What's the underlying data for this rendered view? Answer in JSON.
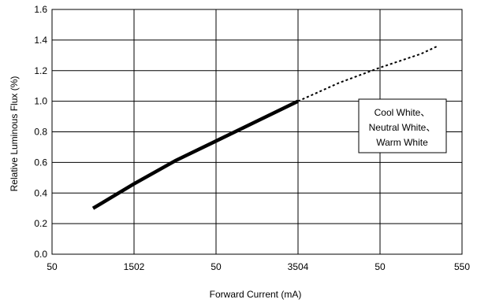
{
  "chart_data": {
    "type": "line",
    "xlabel": "Forward Current (mA)",
    "ylabel": "Relative Luminous Flux (%)",
    "x_tick_labels": [
      "50",
      "1502",
      "50",
      "3504",
      "50",
      "550"
    ],
    "x_tick_values": [
      50,
      150,
      250,
      350,
      450,
      550
    ],
    "xlim": [
      50,
      550
    ],
    "ylim": [
      0,
      1.6
    ],
    "y_ticks": [
      "0.0",
      "0.2",
      "0.4",
      "0.6",
      "0.8",
      "1.0",
      "1.2",
      "1.4",
      "1.6"
    ],
    "grid": true,
    "legend_lines": [
      "Cool White、",
      "Neutral White、",
      "Warm White"
    ],
    "legend_position": "right",
    "series": [
      {
        "style": "solid",
        "color": "#000000",
        "x": [
          100,
          150,
          200,
          250,
          300,
          350
        ],
        "y": [
          0.3,
          0.46,
          0.61,
          0.74,
          0.87,
          1.0
        ]
      },
      {
        "style": "dotted",
        "color": "#000000",
        "x": [
          350,
          400,
          450,
          500,
          520
        ],
        "y": [
          1.0,
          1.12,
          1.22,
          1.31,
          1.36
        ]
      }
    ]
  }
}
